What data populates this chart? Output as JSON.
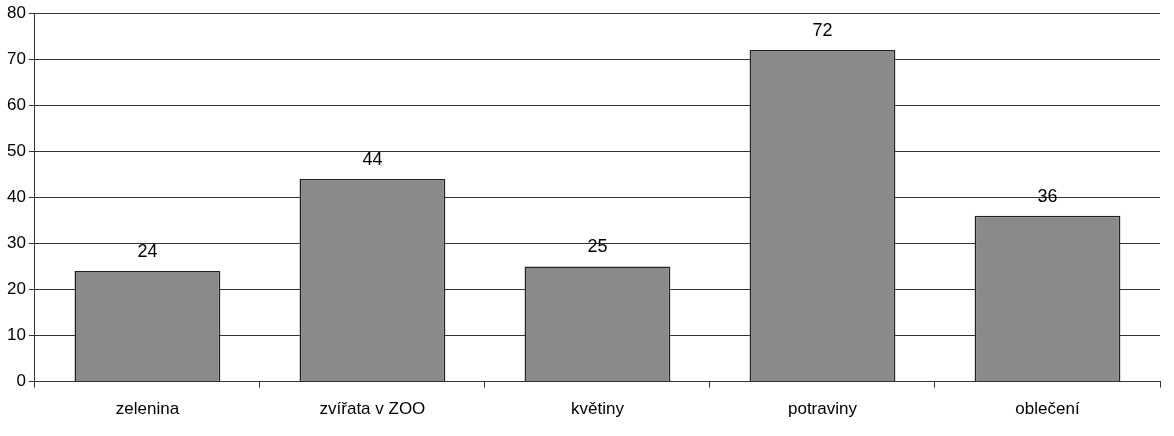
{
  "chart_data": {
    "type": "bar",
    "categories": [
      "zelenina",
      "zvířata v ZOO",
      "květiny",
      "potraviny",
      "oblečení"
    ],
    "values": [
      24,
      44,
      25,
      72,
      36
    ],
    "color": "#8a8a8a",
    "ylim": [
      0,
      80
    ],
    "yticks": [
      0,
      10,
      20,
      30,
      40,
      50,
      60,
      70,
      80
    ],
    "grid": "y",
    "data_labels": true,
    "legend": false
  }
}
